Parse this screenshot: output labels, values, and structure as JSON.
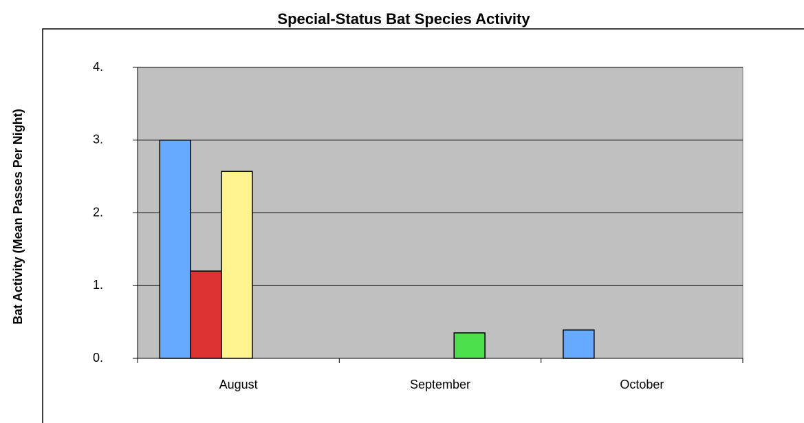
{
  "chart_data": {
    "type": "bar",
    "title": "Special-Status Bat Species Activity",
    "y_label": "Bat Activity (Mean Passes Per Night)",
    "categories": [
      "August",
      "September",
      "October"
    ],
    "series": [
      {
        "color": "#66aaff",
        "values": [
          3.0,
          null,
          0.39
        ]
      },
      {
        "color": "#dd3333",
        "values": [
          1.2,
          null,
          null
        ]
      },
      {
        "color": "#fff38f",
        "values": [
          2.57,
          null,
          null
        ]
      },
      {
        "color": "#4ce04c",
        "values": [
          null,
          0.35,
          null
        ]
      }
    ],
    "ylim": [
      0,
      4
    ],
    "yticks": [
      {
        "value": 0,
        "label": "0."
      },
      {
        "value": 1,
        "label": "1."
      },
      {
        "value": 2,
        "label": "2."
      },
      {
        "value": 3,
        "label": "3."
      },
      {
        "value": 4,
        "label": "4."
      }
    ],
    "grid": true,
    "plot_background": "#c0c0c0"
  }
}
